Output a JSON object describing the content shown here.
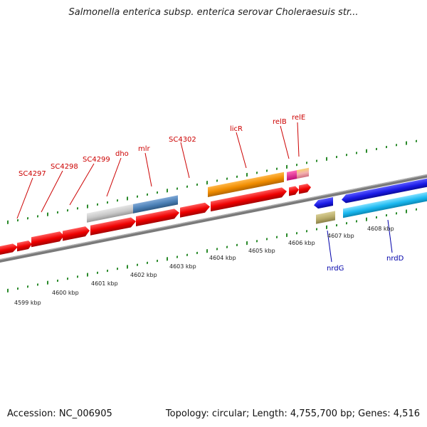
{
  "title": "Salmonella enterica subsp. enterica serovar Choleraesuis str...",
  "footer": {
    "accession": "Accession: NC_006905",
    "summary": "Topology: circular; Length: 4,755,700 bp; Genes: 4,516"
  },
  "gene_labels": [
    {
      "text": "SC4297",
      "strand": "forward"
    },
    {
      "text": "SC4298",
      "strand": "forward"
    },
    {
      "text": "SC4299",
      "strand": "forward"
    },
    {
      "text": "dho",
      "strand": "forward"
    },
    {
      "text": "mlr",
      "strand": "forward"
    },
    {
      "text": "SC4302",
      "strand": "forward"
    },
    {
      "text": "licR",
      "strand": "forward"
    },
    {
      "text": "relB",
      "strand": "forward"
    },
    {
      "text": "relE",
      "strand": "forward"
    },
    {
      "text": "nrdG",
      "strand": "reverse"
    },
    {
      "text": "nrdD",
      "strand": "reverse"
    }
  ],
  "ruler": [
    "4599 kbp",
    "4600 kbp",
    "4601 kbp",
    "4602 kbp",
    "4603 kbp",
    "4604 kbp",
    "4605 kbp",
    "4606 kbp",
    "4607 kbp",
    "4608 kbp"
  ],
  "colors": {
    "cds_forward": "#ee0000",
    "cds_reverse_dark": "#1a1ae6",
    "cds_reverse_light": "#1ab8f0",
    "licR": "#f08c00",
    "relB": "#e8198c",
    "relE": "#f2a0a8",
    "gene_grey": "#c8c8c8",
    "gene_steel": "#4a7fb5",
    "gene_khaki": "#b8ac6a",
    "backbone": "#808080",
    "tick_marks": "#2a8a2a",
    "label_forward": "#cc0000",
    "label_reverse": "#0000aa"
  }
}
